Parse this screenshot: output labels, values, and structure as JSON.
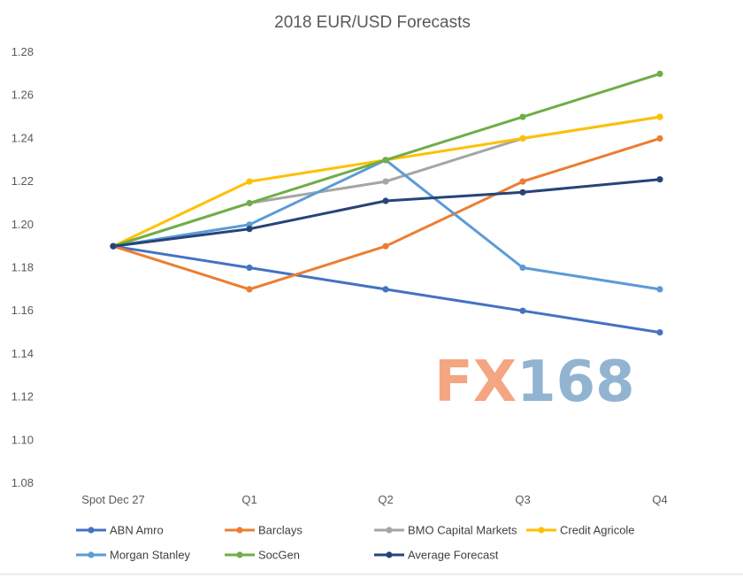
{
  "chart_data": {
    "type": "line",
    "title": "2018 EUR/USD  Forecasts",
    "categories": [
      "Spot Dec 27",
      "Q1",
      "Q2",
      "Q3",
      "Q4"
    ],
    "ylim": [
      1.08,
      1.28
    ],
    "ytick_step": 0.02,
    "ytick_labels": [
      "1.08",
      "1.10",
      "1.12",
      "1.14",
      "1.16",
      "1.18",
      "1.20",
      "1.22",
      "1.24",
      "1.26",
      "1.28"
    ],
    "grid": false,
    "legend_position": "bottom",
    "series": [
      {
        "name": "ABN Amro",
        "color": "#4472C4",
        "values": [
          1.19,
          1.18,
          1.17,
          1.16,
          1.15
        ]
      },
      {
        "name": "Barclays",
        "color": "#ED7D31",
        "values": [
          1.19,
          1.17,
          1.19,
          1.22,
          1.24
        ]
      },
      {
        "name": "BMO Capital Markets",
        "color": "#A5A5A5",
        "values": [
          1.19,
          1.21,
          1.22,
          1.24,
          1.25
        ]
      },
      {
        "name": "Credit Agricole",
        "color": "#FFC000",
        "values": [
          1.19,
          1.22,
          1.23,
          1.24,
          1.25
        ]
      },
      {
        "name": "Morgan Stanley",
        "color": "#5B9BD5",
        "values": [
          1.19,
          1.2,
          1.23,
          1.18,
          1.17
        ]
      },
      {
        "name": "SocGen",
        "color": "#70AD47",
        "values": [
          1.19,
          1.21,
          1.23,
          1.25,
          1.27
        ]
      },
      {
        "name": "Average Forecast",
        "color": "#264478",
        "values": [
          1.19,
          1.198,
          1.211,
          1.215,
          1.221
        ]
      }
    ]
  },
  "watermark": {
    "text": "FX168",
    "colors": [
      "#F4A582",
      "#92B4D1"
    ]
  }
}
